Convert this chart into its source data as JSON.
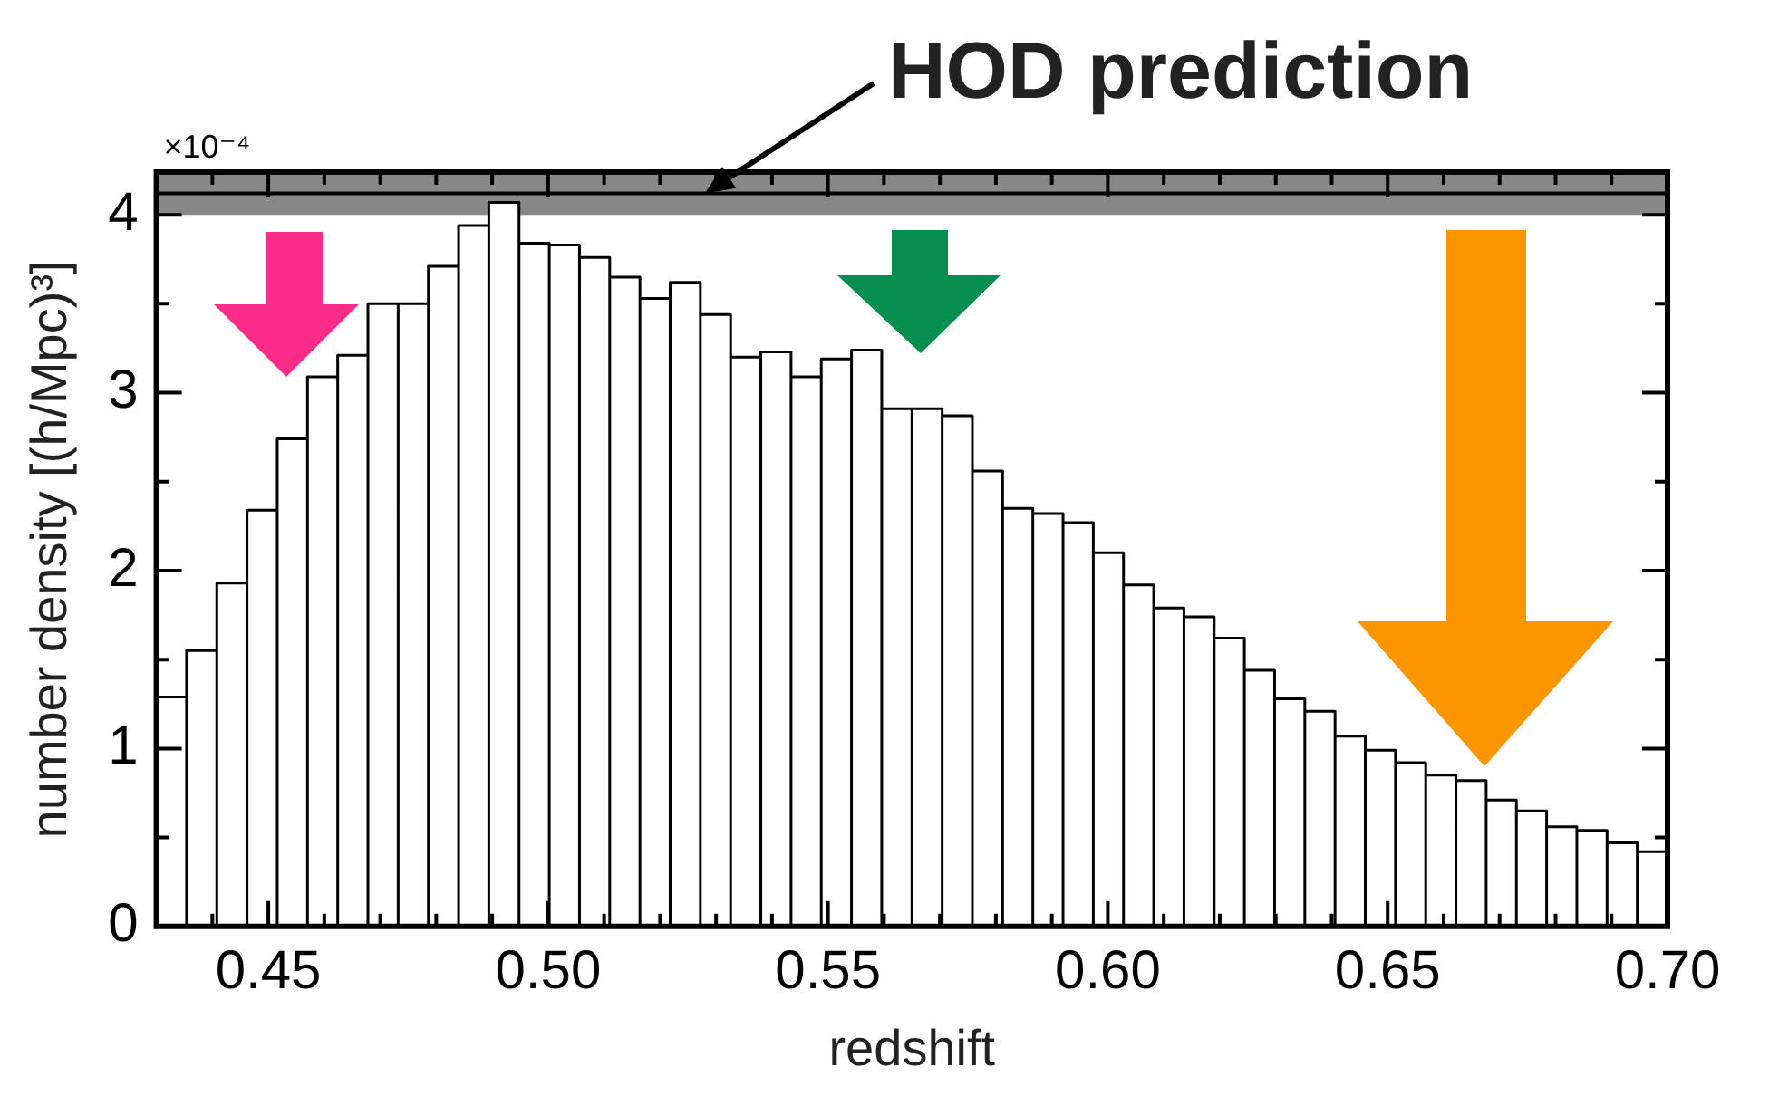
{
  "chart_data": {
    "type": "histogram",
    "xlabel": "redshift",
    "ylabel": "number density [(h/Mpc)³]",
    "bins": [
      0.43,
      0.4354,
      0.4408,
      0.4462,
      0.4516,
      0.457,
      0.4624,
      0.4678,
      0.4732,
      0.4786,
      0.484,
      0.4894,
      0.4948,
      0.5002,
      0.5056,
      0.511,
      0.5164,
      0.5218,
      0.5272,
      0.5326,
      0.538,
      0.5434,
      0.5488,
      0.5542,
      0.5596,
      0.565,
      0.5704,
      0.5758,
      0.5812,
      0.5866,
      0.592,
      0.5974,
      0.6028,
      0.6082,
      0.6136,
      0.619,
      0.6244,
      0.6298,
      0.6352,
      0.6406,
      0.646,
      0.6514,
      0.6568,
      0.6622,
      0.6676,
      0.673,
      0.6784,
      0.6838,
      0.6892,
      0.6946,
      0.7
    ],
    "values": [
      1.29,
      1.55,
      1.93,
      2.34,
      2.74,
      3.09,
      3.21,
      3.5,
      3.5,
      3.71,
      3.94,
      4.07,
      3.84,
      3.83,
      3.76,
      3.65,
      3.53,
      3.62,
      3.44,
      3.2,
      3.23,
      3.09,
      3.19,
      3.24,
      2.91,
      2.91,
      2.87,
      2.56,
      2.35,
      2.32,
      2.27,
      2.1,
      1.92,
      1.79,
      1.74,
      1.62,
      1.44,
      1.28,
      1.21,
      1.07,
      0.99,
      0.92,
      0.85,
      0.82,
      0.71,
      0.65,
      0.56,
      0.54,
      0.47,
      0.42
    ],
    "color": "#ffffff",
    "xlim": [
      0.43,
      0.7
    ],
    "xticks": [
      {
        "value": 0.44,
        "label": null
      },
      0.45,
      {
        "value": 0.46,
        "label": null
      },
      {
        "value": 0.47,
        "label": null
      },
      {
        "value": 0.48,
        "label": null
      },
      {
        "value": 0.49,
        "label": null
      },
      {
        "value": 0.5,
        "label": "0.50"
      },
      {
        "value": 0.51,
        "label": null
      },
      {
        "value": 0.52,
        "label": null
      },
      {
        "value": 0.53,
        "label": null
      },
      {
        "value": 0.54,
        "label": null
      },
      0.55,
      {
        "value": 0.56,
        "label": null
      },
      {
        "value": 0.57,
        "label": null
      },
      {
        "value": 0.58,
        "label": null
      },
      {
        "value": 0.59,
        "label": null
      },
      {
        "value": 0.6,
        "label": "0.60"
      },
      {
        "value": 0.61,
        "label": null
      },
      {
        "value": 0.62,
        "label": null
      },
      {
        "value": 0.63,
        "label": null
      },
      {
        "value": 0.64,
        "label": null
      },
      0.65,
      {
        "value": 0.66,
        "label": null
      },
      {
        "value": 0.67,
        "label": null
      },
      {
        "value": 0.68,
        "label": null
      },
      {
        "value": 0.69,
        "label": null
      },
      {
        "value": 0.7,
        "label": "0.70"
      }
    ],
    "ylim": [
      0,
      4.24
    ],
    "yticks": [
      0,
      {
        "value": 0.5,
        "label": null
      },
      1,
      {
        "value": 1.5,
        "label": null
      },
      2,
      {
        "value": 2.5,
        "label": null
      },
      3,
      {
        "value": 3.5,
        "label": null
      },
      4
    ],
    "ref_lines": [
      {
        "axis": "y",
        "value": 4.12,
        "color": "#000000"
      }
    ],
    "bands": [
      {
        "axis": "y",
        "from": 4.0,
        "to": 4.24,
        "color": "#888888"
      }
    ],
    "annotations": [
      "×10⁻⁴",
      {
        "text": "HOD prediction",
        "x": 0.528,
        "y": 4.12
      }
    ],
    "grid": false,
    "legend": false
  }
}
